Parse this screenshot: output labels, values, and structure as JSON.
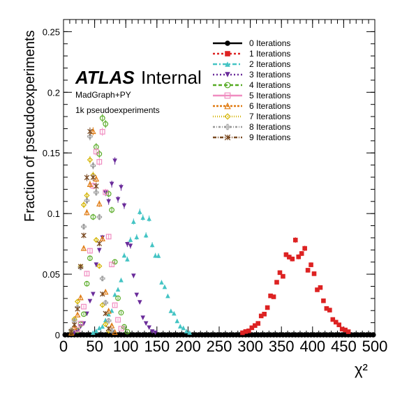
{
  "chart_data": {
    "type": "scatter",
    "ylabel": "Fraction of pseudoexperiments",
    "xlabel": "χ²",
    "xlim": [
      0,
      500
    ],
    "ylim": [
      0,
      0.26
    ],
    "x_ticks": [
      0,
      50,
      100,
      150,
      200,
      250,
      300,
      350,
      400,
      450,
      500
    ],
    "x_tick_labels": [
      "0",
      "50",
      "100",
      "150",
      "200",
      "250",
      "300",
      "350",
      "400",
      "450",
      "500"
    ],
    "y_ticks": [
      0,
      0.05,
      0.1,
      0.15,
      0.2,
      0.25
    ],
    "y_tick_labels": [
      "0",
      "0.05",
      "0.1",
      "0.15",
      "0.2",
      "0.25"
    ],
    "annotations": {
      "atlas_bold": "ATLAS",
      "atlas_label": "Internal",
      "generator": "MadGraph+PY",
      "sample": "1k pseudoexperiments"
    },
    "legend_position": "top-right",
    "series": [
      {
        "name": "0 Iterations",
        "color": "#000000",
        "marker": "circle",
        "dash": "",
        "mean": 0,
        "sigma": 1,
        "peak": 0
      },
      {
        "name": "1 Iterations",
        "color": "#dd2222",
        "marker": "square",
        "dash": "3,3",
        "mean": 375,
        "sigma": 32,
        "peak": 0.07
      },
      {
        "name": "2 Iterations",
        "color": "#44c4c4",
        "marker": "triangle-up",
        "dash": "6,3,2,3",
        "mean": 125,
        "sigma": 28,
        "peak": 0.095
      },
      {
        "name": "3 Iterations",
        "color": "#6a2c9a",
        "marker": "triangle-down",
        "dash": "2,3",
        "mean": 82,
        "sigma": 22,
        "peak": 0.13
      },
      {
        "name": "4 Iterations",
        "color": "#55aa22",
        "marker": "circle-open",
        "dash": "5,3",
        "mean": 62,
        "sigma": 14,
        "peak": 0.175
      },
      {
        "name": "5 Iterations",
        "color": "#f08cc0",
        "marker": "square-open",
        "dash": "",
        "mean": 58,
        "sigma": 13,
        "peak": 0.16
      },
      {
        "name": "6 Iterations",
        "color": "#e07a10",
        "marker": "triangle-open",
        "dash": "3,2",
        "mean": 48,
        "sigma": 12,
        "peak": 0.15
      },
      {
        "name": "7 Iterations",
        "color": "#d4b400",
        "marker": "diamond-open",
        "dash": "1,2",
        "mean": 42,
        "sigma": 11,
        "peak": 0.14
      },
      {
        "name": "8 Iterations",
        "color": "#999999",
        "marker": "cross-open",
        "dash": "3,2,1,2",
        "mean": 45,
        "sigma": 12,
        "peak": 0.15
      },
      {
        "name": "9 Iterations",
        "color": "#7a4a22",
        "marker": "star",
        "dash": "5,2,1,2",
        "mean": 44,
        "sigma": 11,
        "peak": 0.155
      }
    ]
  }
}
